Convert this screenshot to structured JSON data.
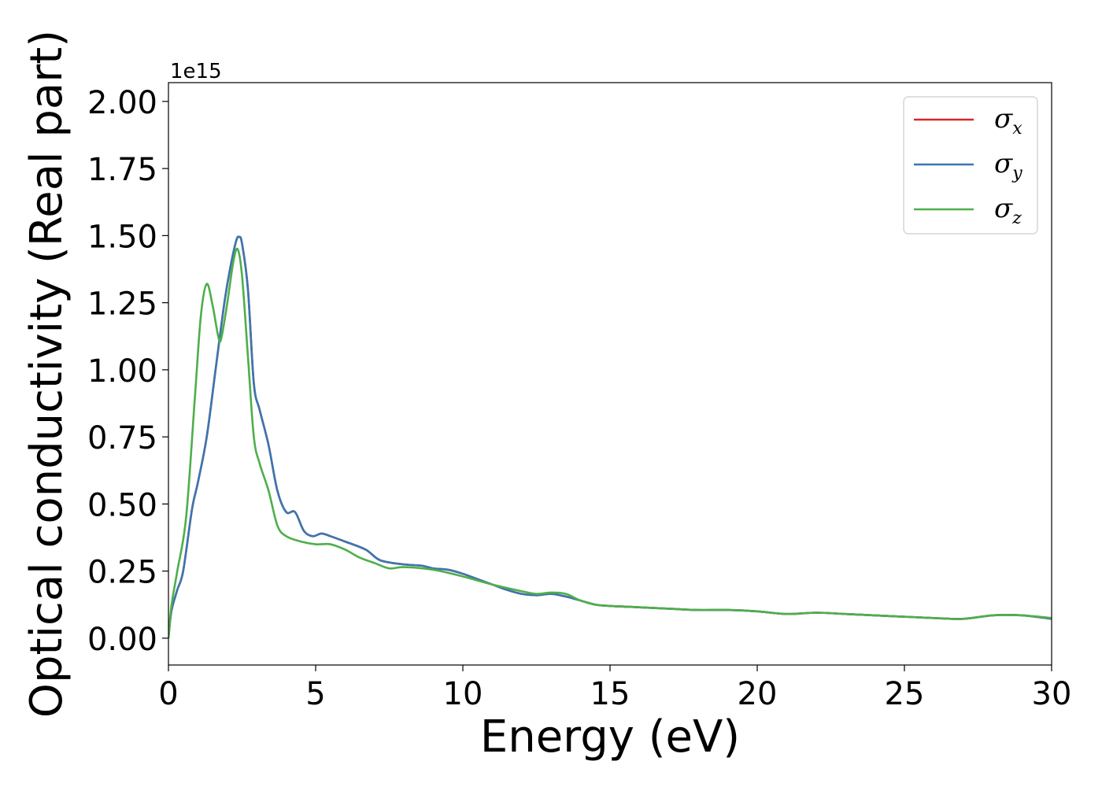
{
  "chart_data": {
    "type": "line",
    "title": "",
    "xlabel": "Energy (eV)",
    "ylabel": "Optical conductivity (Real part)",
    "y_offset_label": "1e15",
    "xlim": [
      0,
      30
    ],
    "ylim": [
      -0.1,
      2.07
    ],
    "y_scale_factor": 1000000000000000.0,
    "x_ticks": [
      0,
      5,
      10,
      15,
      20,
      25,
      30
    ],
    "x_tick_labels": [
      "0",
      "5",
      "10",
      "15",
      "20",
      "25",
      "30"
    ],
    "y_ticks": [
      0.0,
      0.25,
      0.5,
      0.75,
      1.0,
      1.25,
      1.5,
      1.75,
      2.0
    ],
    "y_tick_labels": [
      "0.00",
      "0.25",
      "0.50",
      "0.75",
      "1.00",
      "1.25",
      "1.50",
      "1.75",
      "2.00"
    ],
    "grid": false,
    "legend_position": "top-right",
    "series": [
      {
        "name": "σx",
        "symbol": "σ",
        "subscript": "x",
        "color": "#d62728",
        "x": [
          0,
          0.1,
          0.3,
          0.5,
          0.8,
          1.0,
          1.3,
          1.6,
          1.9,
          2.1,
          2.3,
          2.4,
          2.5,
          2.7,
          2.9,
          3.1,
          3.4,
          3.7,
          4.0,
          4.3,
          4.6,
          4.9,
          5.2,
          5.5,
          6.0,
          6.7,
          7.2,
          8.0,
          8.6,
          9.0,
          9.5,
          10.0,
          10.5,
          11.0,
          11.5,
          12.0,
          12.5,
          13.0,
          13.5,
          14.0,
          14.5,
          15.0,
          16.0,
          17.0,
          18.0,
          19.0,
          20.0,
          21.0,
          22.0,
          23.0,
          24.0,
          25.0,
          26.0,
          27.0,
          28.0,
          29.0,
          30.0
        ],
        "y": [
          0.0,
          0.1,
          0.18,
          0.25,
          0.48,
          0.58,
          0.75,
          1.0,
          1.25,
          1.38,
          1.48,
          1.495,
          1.47,
          1.3,
          0.95,
          0.85,
          0.72,
          0.55,
          0.47,
          0.47,
          0.4,
          0.38,
          0.39,
          0.38,
          0.36,
          0.33,
          0.29,
          0.275,
          0.27,
          0.26,
          0.255,
          0.24,
          0.22,
          0.2,
          0.18,
          0.165,
          0.16,
          0.165,
          0.155,
          0.14,
          0.125,
          0.12,
          0.115,
          0.11,
          0.105,
          0.105,
          0.1,
          0.09,
          0.095,
          0.09,
          0.085,
          0.08,
          0.075,
          0.072,
          0.085,
          0.085,
          0.072
        ]
      },
      {
        "name": "σy",
        "symbol": "σ",
        "subscript": "y",
        "color": "#3a76b0",
        "x": [
          0,
          0.1,
          0.3,
          0.5,
          0.8,
          1.0,
          1.3,
          1.6,
          1.9,
          2.1,
          2.3,
          2.4,
          2.5,
          2.7,
          2.9,
          3.1,
          3.4,
          3.7,
          4.0,
          4.3,
          4.6,
          4.9,
          5.2,
          5.5,
          6.0,
          6.7,
          7.2,
          8.0,
          8.6,
          9.0,
          9.5,
          10.0,
          10.5,
          11.0,
          11.5,
          12.0,
          12.5,
          13.0,
          13.5,
          14.0,
          14.5,
          15.0,
          16.0,
          17.0,
          18.0,
          19.0,
          20.0,
          21.0,
          22.0,
          23.0,
          24.0,
          25.0,
          26.0,
          27.0,
          28.0,
          29.0,
          30.0
        ],
        "y": [
          0.0,
          0.1,
          0.18,
          0.25,
          0.48,
          0.58,
          0.75,
          1.0,
          1.25,
          1.38,
          1.48,
          1.495,
          1.47,
          1.3,
          0.95,
          0.85,
          0.72,
          0.55,
          0.47,
          0.47,
          0.4,
          0.38,
          0.39,
          0.38,
          0.36,
          0.33,
          0.29,
          0.275,
          0.27,
          0.26,
          0.255,
          0.24,
          0.22,
          0.2,
          0.18,
          0.165,
          0.16,
          0.165,
          0.155,
          0.14,
          0.125,
          0.12,
          0.115,
          0.11,
          0.105,
          0.105,
          0.1,
          0.09,
          0.095,
          0.09,
          0.085,
          0.08,
          0.075,
          0.072,
          0.085,
          0.085,
          0.072
        ]
      },
      {
        "name": "σz",
        "symbol": "σ",
        "subscript": "z",
        "color": "#4daf4a",
        "x": [
          0,
          0.1,
          0.3,
          0.6,
          0.9,
          1.1,
          1.3,
          1.5,
          1.7,
          1.8,
          2.0,
          2.2,
          2.35,
          2.5,
          2.7,
          2.9,
          3.1,
          3.4,
          3.7,
          4.0,
          4.5,
          5.0,
          5.5,
          6.0,
          6.5,
          7.0,
          7.5,
          8.0,
          9.0,
          10.0,
          11.0,
          12.0,
          12.5,
          13.0,
          13.5,
          14.0,
          14.5,
          15.0,
          16.0,
          17.0,
          18.0,
          19.0,
          20.0,
          21.0,
          22.0,
          23.0,
          24.0,
          25.0,
          26.0,
          27.0,
          28.0,
          29.0,
          30.0
        ],
        "y": [
          0.0,
          0.12,
          0.25,
          0.45,
          0.9,
          1.2,
          1.32,
          1.24,
          1.12,
          1.12,
          1.25,
          1.4,
          1.45,
          1.35,
          1.05,
          0.75,
          0.65,
          0.55,
          0.42,
          0.38,
          0.36,
          0.35,
          0.35,
          0.33,
          0.3,
          0.28,
          0.26,
          0.265,
          0.255,
          0.23,
          0.2,
          0.175,
          0.165,
          0.17,
          0.165,
          0.14,
          0.125,
          0.12,
          0.115,
          0.11,
          0.105,
          0.105,
          0.1,
          0.09,
          0.095,
          0.09,
          0.085,
          0.08,
          0.075,
          0.072,
          0.085,
          0.085,
          0.075
        ]
      }
    ]
  }
}
